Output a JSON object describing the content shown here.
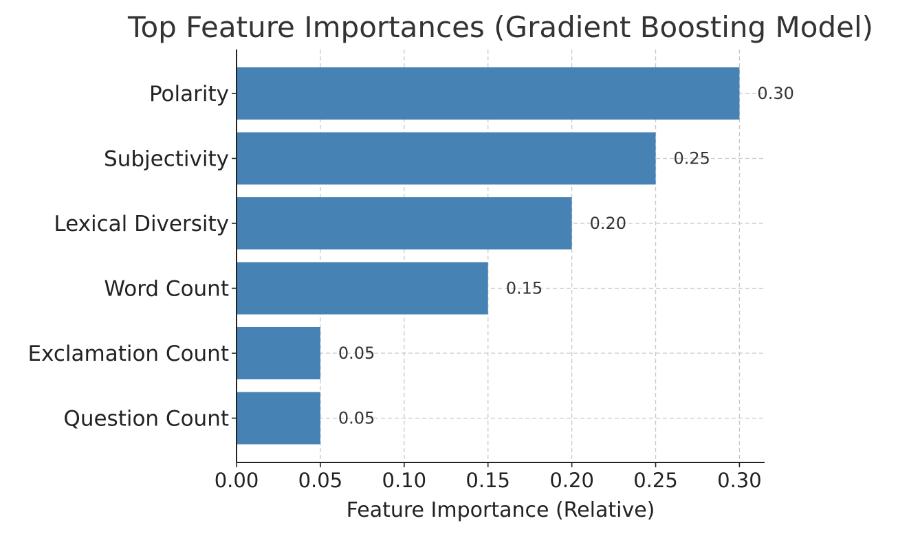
{
  "chart_data": {
    "type": "bar",
    "orientation": "horizontal",
    "title": "Top Feature Importances (Gradient Boosting Model)",
    "xlabel": "Feature Importance (Relative)",
    "ylabel": "",
    "categories": [
      "Polarity",
      "Subjectivity",
      "Lexical Diversity",
      "Word Count",
      "Exclamation Count",
      "Question Count"
    ],
    "values": [
      0.3,
      0.25,
      0.2,
      0.15,
      0.05,
      0.05
    ],
    "value_labels": [
      "0.30",
      "0.25",
      "0.20",
      "0.15",
      "0.05",
      "0.05"
    ],
    "xlim": [
      0,
      0.315
    ],
    "xticks": [
      0.0,
      0.05,
      0.1,
      0.15,
      0.2,
      0.25,
      0.3
    ],
    "xtick_labels": [
      "0.00",
      "0.05",
      "0.10",
      "0.15",
      "0.20",
      "0.25",
      "0.30"
    ],
    "grid": true,
    "grid_style": "dashed",
    "legend": "none",
    "colors": {
      "bar": "#4682b4",
      "grid": "#c8c8c8",
      "axis": "#222222"
    }
  }
}
